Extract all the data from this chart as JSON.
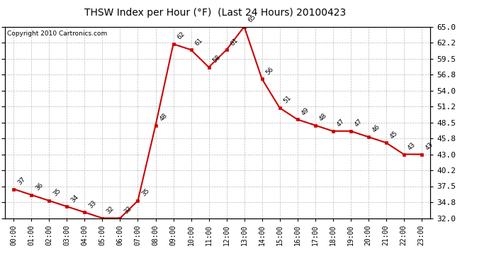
{
  "title": "THSW Index per Hour (°F)  (Last 24 Hours) 20100423",
  "copyright": "Copyright 2010 Cartronics.com",
  "hours": [
    "00:00",
    "01:00",
    "02:00",
    "03:00",
    "04:00",
    "05:00",
    "06:00",
    "07:00",
    "08:00",
    "09:00",
    "10:00",
    "11:00",
    "12:00",
    "13:00",
    "14:00",
    "15:00",
    "16:00",
    "17:00",
    "18:00",
    "19:00",
    "20:00",
    "21:00",
    "22:00",
    "23:00"
  ],
  "values": [
    37,
    36,
    35,
    34,
    33,
    32,
    32,
    35,
    48,
    62,
    61,
    58,
    61,
    65,
    56,
    51,
    49,
    48,
    47,
    47,
    46,
    45,
    43,
    43
  ],
  "line_color": "#cc0000",
  "marker_color": "#cc0000",
  "bg_color": "#ffffff",
  "grid_color": "#bbbbbb",
  "ylim_min": 32.0,
  "ylim_max": 65.0,
  "yticks": [
    32.0,
    34.8,
    37.5,
    40.2,
    43.0,
    45.8,
    48.5,
    51.2,
    54.0,
    56.8,
    59.5,
    62.2,
    65.0
  ]
}
